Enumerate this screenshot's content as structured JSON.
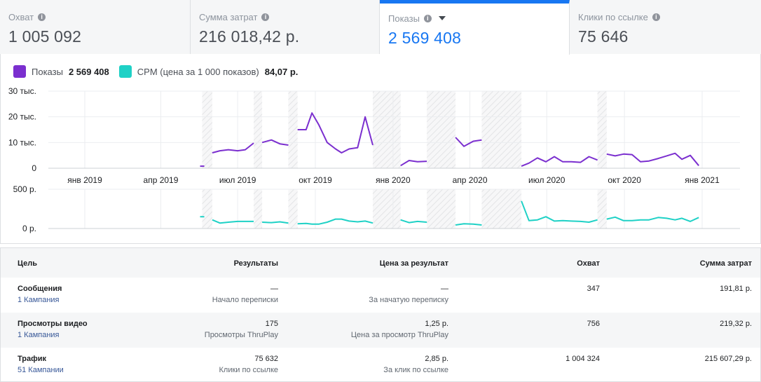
{
  "tabs": [
    {
      "label": "Охват",
      "value": "1 005 092",
      "active": false
    },
    {
      "label": "Сумма затрат",
      "value": "216 018,42 р.",
      "active": false
    },
    {
      "label": "Показы",
      "value": "2 569 408",
      "active": true
    },
    {
      "label": "Клики по ссылке",
      "value": "75 646",
      "active": false
    }
  ],
  "legend": [
    {
      "name": "Показы",
      "value": "2 569 408",
      "color": "#7b2fcf"
    },
    {
      "name": "CPM (цена за 1 000 показов)",
      "value": "84,07 р.",
      "color": "#1fd1c6"
    }
  ],
  "chart_data": [
    {
      "type": "line",
      "series": [
        {
          "name": "Показы",
          "color": "#7b2fcf"
        }
      ],
      "ylabels": [
        "30 тыс.",
        "20 тыс.",
        "10 тыс.",
        "0"
      ],
      "ylim": [
        0,
        30000
      ],
      "xlabels": [
        "янв 2019",
        "апр 2019",
        "июл 2019",
        "окт 2019",
        "янв 2020",
        "апр 2020",
        "июл 2020",
        "окт 2020",
        "янв 2021"
      ],
      "segments": [
        [
          [
            "2019-05-20",
            800
          ]
        ],
        [
          [
            "2019-06-01",
            6000
          ],
          [
            "2019-06-10",
            6800
          ],
          [
            "2019-06-20",
            7200
          ],
          [
            "2019-07-01",
            6800
          ],
          [
            "2019-07-10",
            7200
          ],
          [
            "2019-07-20",
            9800
          ]
        ],
        [
          [
            "2019-07-30",
            10000
          ],
          [
            "2019-08-10",
            11000
          ],
          [
            "2019-08-20",
            9500
          ],
          [
            "2019-08-30",
            9000
          ]
        ],
        [
          [
            "2019-09-10",
            15000
          ],
          [
            "2019-09-20",
            15000
          ],
          [
            "2019-09-27",
            21500
          ],
          [
            "2019-10-05",
            17000
          ],
          [
            "2019-10-15",
            10000
          ],
          [
            "2019-10-25",
            7500
          ],
          [
            "2019-11-01",
            6000
          ],
          [
            "2019-11-10",
            7500
          ],
          [
            "2019-11-20",
            8000
          ],
          [
            "2019-11-29",
            20000
          ],
          [
            "2019-12-08",
            9000
          ]
        ],
        [
          [
            "2020-01-10",
            1000
          ],
          [
            "2020-01-20",
            3000
          ],
          [
            "2020-01-30",
            2500
          ],
          [
            "2020-02-10",
            2700
          ]
        ],
        [
          [
            "2020-03-15",
            12000
          ],
          [
            "2020-03-25",
            8500
          ],
          [
            "2020-04-05",
            10500
          ],
          [
            "2020-04-15",
            11000
          ]
        ],
        [
          [
            "2020-06-01",
            800
          ],
          [
            "2020-06-10",
            2000
          ],
          [
            "2020-06-20",
            4000
          ],
          [
            "2020-06-30",
            2500
          ],
          [
            "2020-07-10",
            4500
          ],
          [
            "2020-07-20",
            2500
          ],
          [
            "2020-07-30",
            2500
          ],
          [
            "2020-08-10",
            2300
          ],
          [
            "2020-08-20",
            4500
          ],
          [
            "2020-08-30",
            3200
          ]
        ],
        [
          [
            "2020-09-10",
            5500
          ],
          [
            "2020-09-20",
            4800
          ],
          [
            "2020-09-30",
            5500
          ],
          [
            "2020-10-10",
            5300
          ],
          [
            "2020-10-20",
            2500
          ],
          [
            "2020-10-30",
            2800
          ],
          [
            "2020-11-10",
            3800
          ],
          [
            "2020-11-20",
            4800
          ],
          [
            "2020-11-30",
            5800
          ],
          [
            "2020-12-08",
            3500
          ],
          [
            "2020-12-18",
            5000
          ],
          [
            "2020-12-28",
            1000
          ]
        ]
      ]
    },
    {
      "type": "line",
      "series": [
        {
          "name": "CPM (цена за 1 000 показов)",
          "color": "#1fd1c6"
        }
      ],
      "ylabels": [
        "500 р.",
        "0 р."
      ],
      "ylim": [
        0,
        500
      ],
      "segments": [
        [
          [
            "2019-05-20",
            150
          ]
        ],
        [
          [
            "2019-06-01",
            110
          ],
          [
            "2019-06-10",
            70
          ],
          [
            "2019-06-20",
            80
          ],
          [
            "2019-07-01",
            90
          ],
          [
            "2019-07-10",
            90
          ],
          [
            "2019-07-20",
            90
          ]
        ],
        [
          [
            "2019-07-30",
            80
          ],
          [
            "2019-08-10",
            75
          ],
          [
            "2019-08-20",
            85
          ],
          [
            "2019-08-30",
            70
          ]
        ],
        [
          [
            "2019-09-10",
            60
          ],
          [
            "2019-09-20",
            65
          ],
          [
            "2019-09-27",
            55
          ],
          [
            "2019-10-05",
            55
          ],
          [
            "2019-10-15",
            80
          ],
          [
            "2019-10-25",
            120
          ],
          [
            "2019-11-01",
            120
          ],
          [
            "2019-11-10",
            95
          ],
          [
            "2019-11-20",
            85
          ],
          [
            "2019-11-29",
            95
          ],
          [
            "2019-12-08",
            70
          ]
        ],
        [
          [
            "2020-01-10",
            110
          ],
          [
            "2020-01-20",
            75
          ],
          [
            "2020-01-30",
            90
          ],
          [
            "2020-02-10",
            80
          ]
        ],
        [
          [
            "2020-03-15",
            45
          ],
          [
            "2020-03-25",
            60
          ],
          [
            "2020-04-05",
            55
          ],
          [
            "2020-04-15",
            45
          ]
        ],
        [
          [
            "2020-06-01",
            350
          ],
          [
            "2020-06-10",
            100
          ],
          [
            "2020-06-20",
            110
          ],
          [
            "2020-06-30",
            150
          ],
          [
            "2020-07-10",
            95
          ],
          [
            "2020-07-20",
            100
          ],
          [
            "2020-07-30",
            95
          ],
          [
            "2020-08-10",
            90
          ],
          [
            "2020-08-20",
            80
          ],
          [
            "2020-08-30",
            110
          ]
        ],
        [
          [
            "2020-09-10",
            120
          ],
          [
            "2020-09-20",
            145
          ],
          [
            "2020-09-30",
            100
          ],
          [
            "2020-10-10",
            100
          ],
          [
            "2020-10-20",
            110
          ],
          [
            "2020-10-30",
            110
          ],
          [
            "2020-11-10",
            140
          ],
          [
            "2020-11-20",
            130
          ],
          [
            "2020-11-30",
            110
          ],
          [
            "2020-12-08",
            130
          ],
          [
            "2020-12-18",
            90
          ],
          [
            "2020-12-28",
            140
          ]
        ]
      ],
      "shaded_ranges": [
        [
          "2019-05-20",
          "2019-06-01"
        ],
        [
          "2019-07-20",
          "2019-07-30"
        ],
        [
          "2019-08-30",
          "2019-09-10"
        ],
        [
          "2019-12-08",
          "2020-01-10"
        ],
        [
          "2020-02-10",
          "2020-03-15"
        ],
        [
          "2020-04-15",
          "2020-06-01"
        ],
        [
          "2020-08-30",
          "2020-09-10"
        ]
      ]
    }
  ],
  "table": {
    "headers": [
      "Цель",
      "Результаты",
      "Цена за результат",
      "Охват",
      "Сумма затрат"
    ],
    "rows": [
      {
        "goal": "Сообщения",
        "campaigns": "1 Кампания",
        "results": "—",
        "results_sub": "Начало переписки",
        "cost": "—",
        "cost_sub": "За начатую переписку",
        "reach": "347",
        "spend": "191,81 р."
      },
      {
        "goal": "Просмотры видео",
        "campaigns": "1 Кампания",
        "results": "175",
        "results_sub": "Просмотры ThruPlay",
        "cost": "1,25 р.",
        "cost_sub": "Цена за просмотр ThruPlay",
        "reach": "756",
        "spend": "219,32 р."
      },
      {
        "goal": "Трафик",
        "campaigns": "51 Кампании",
        "results": "75 632",
        "results_sub": "Клики по ссылке",
        "cost": "2,85 р.",
        "cost_sub": "За клик по ссылке",
        "reach": "1 004 324",
        "spend": "215 607,29 р."
      }
    ]
  }
}
